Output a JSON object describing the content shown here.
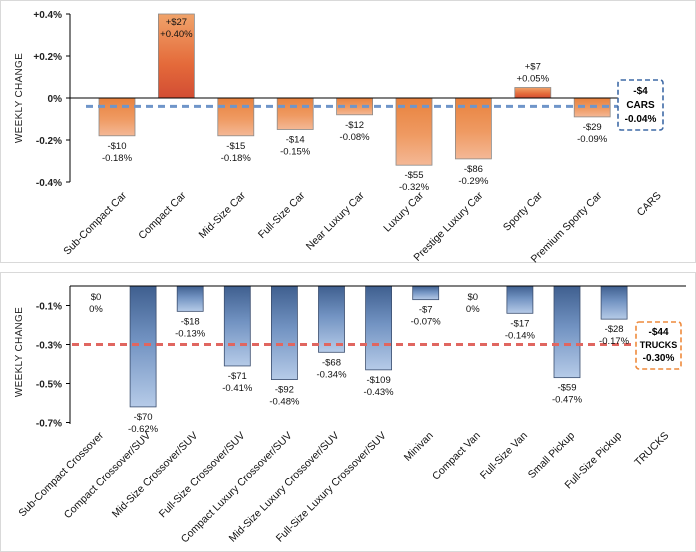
{
  "chart_data": [
    {
      "type": "bar",
      "ylabel": "WEEKLY CHANGE",
      "ylim": [
        -0.4,
        0.4
      ],
      "yticks": [
        "+0.4%",
        "+0.2%",
        "0%",
        "-0.2%",
        "-0.4%"
      ],
      "categories": [
        "Sub-Compact Car",
        "Compact Car",
        "Mid-Size Car",
        "Full-Size Car",
        "Near Luxury Car",
        "Luxury Car",
        "Prestige Luxury Car",
        "Sporty Car",
        "Premium Sporty Car",
        "CARS"
      ],
      "values": [
        -0.18,
        0.4,
        -0.18,
        -0.15,
        -0.08,
        -0.32,
        -0.29,
        0.05,
        -0.09,
        null
      ],
      "dollar_labels": [
        "-$10",
        "+$27",
        "-$15",
        "-$14",
        "-$12",
        "-$55",
        "-$86",
        "+$7",
        "-$29",
        ""
      ],
      "pct_labels": [
        "-0.18%",
        "+0.40%",
        "-0.18%",
        "-0.15%",
        "-0.08%",
        "-0.32%",
        "-0.29%",
        "+0.05%",
        "-0.09%",
        ""
      ],
      "segment_average": {
        "value": -0.04,
        "dollar": "-$4",
        "name": "CARS",
        "pct": "-0.04%"
      },
      "colors": {
        "bar_top": "#f0a36a",
        "bar_mid": "#ea7a38",
        "bar_dark": "#d24d34",
        "ref_line": "#6f95c9"
      }
    },
    {
      "type": "bar",
      "ylabel": "WEEKLY CHANGE",
      "ylim": [
        -0.7,
        0.0
      ],
      "yticks": [
        "-0.1%",
        "-0.3%",
        "-0.5%",
        "-0.7%"
      ],
      "ytick_values": [
        -0.1,
        -0.3,
        -0.5,
        -0.7
      ],
      "categories": [
        "Sub-Compact Crossover",
        "Compact Crossover/SUV",
        "Mid-Size Crossover/SUV",
        "Full-Size Crossover/SUV",
        "Compact Luxury Crossover/SUV",
        "Mid-Size Luxury Crossover/SUV",
        "Full-Size Luxury Crossover/SUV",
        "Minivan",
        "Compact Van",
        "Full-Size Van",
        "Small Pickup",
        "Full-Size Pickup",
        "TRUCKS"
      ],
      "values": [
        0,
        -0.62,
        -0.13,
        -0.41,
        -0.48,
        -0.34,
        -0.43,
        -0.07,
        0,
        -0.14,
        -0.47,
        -0.17,
        null
      ],
      "dollar_labels": [
        "$0",
        "-$70",
        "-$18",
        "-$71",
        "-$92",
        "-$68",
        "-$109",
        "-$7",
        "$0",
        "-$17",
        "-$59",
        "-$28",
        ""
      ],
      "pct_labels": [
        "0%",
        "-0.62%",
        "-0.13%",
        "-0.41%",
        "-0.48%",
        "-0.34%",
        "-0.43%",
        "-0.07%",
        "0%",
        "-0.14%",
        "-0.47%",
        "-0.17%",
        ""
      ],
      "segment_average": {
        "value": -0.3,
        "dollar": "-$44",
        "name": "TRUCKS",
        "pct": "-0.30%"
      },
      "colors": {
        "bar_dark": "#3f5f8f",
        "bar_light": "#aac1e2",
        "ref_line": "#e06660"
      }
    }
  ]
}
